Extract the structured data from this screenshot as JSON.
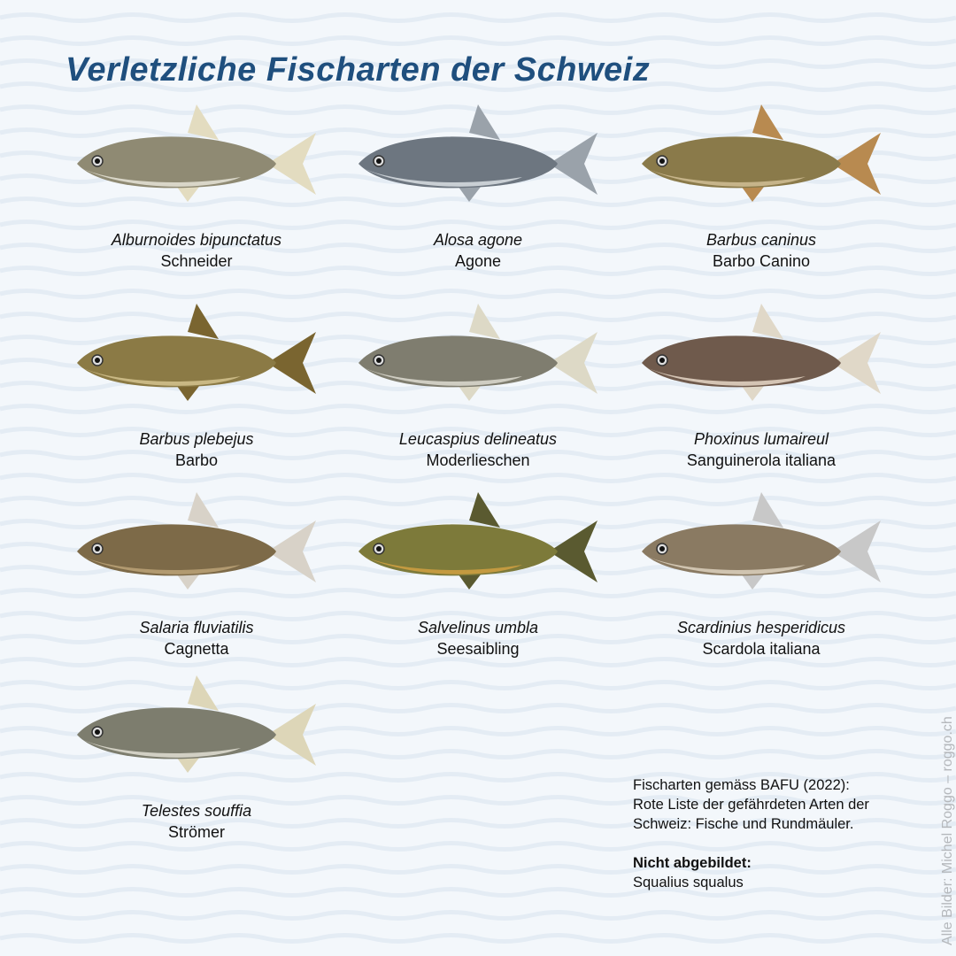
{
  "title": "Verletzliche Fischarten der Schweiz",
  "fish": [
    {
      "latin": "Alburnoides bipunctatus",
      "common": "Schneider",
      "body": "#8f8a73",
      "belly": "#d9d6c8",
      "fin": "#e3dcc0"
    },
    {
      "latin": "Alosa agone",
      "common": "Agone",
      "body": "#6d7680",
      "belly": "#c9cfd4",
      "fin": "#9aa2aa"
    },
    {
      "latin": "Barbus caninus",
      "common": "Barbo Canino",
      "body": "#8a7a4a",
      "belly": "#c6b48a",
      "fin": "#b88a50"
    },
    {
      "latin": "Barbus plebejus",
      "common": "Barbo",
      "body": "#8b7a45",
      "belly": "#c9b884",
      "fin": "#7a6530"
    },
    {
      "latin": "Leucaspius delineatus",
      "common": "Moderlieschen",
      "body": "#7f7d6f",
      "belly": "#cfcdc2",
      "fin": "#ddd9c6"
    },
    {
      "latin": "Phoxinus lumaireul",
      "common": "Sanguinerola italiana",
      "body": "#6f5a4c",
      "belly": "#d4c4b4",
      "fin": "#e0d8c8"
    },
    {
      "latin": "Salaria fluviatilis",
      "common": "Cagnetta",
      "body": "#7d6a48",
      "belly": "#b29a70",
      "fin": "#d8d2c8"
    },
    {
      "latin": "Salvelinus umbla",
      "common": "Seesaibling",
      "body": "#7d7a3a",
      "belly": "#c49a40",
      "fin": "#5a5a30"
    },
    {
      "latin": "Scardinius hesperidicus",
      "common": "Scardola italiana",
      "body": "#8a7a62",
      "belly": "#d0c4b0",
      "fin": "#c8c8c8"
    },
    {
      "latin": "Telestes souffia",
      "common": "Strömer",
      "body": "#7d7d6e",
      "belly": "#d2d0c4",
      "fin": "#ddd6b8"
    }
  ],
  "note": {
    "line1": "Fischarten gemäss BAFU (2022):",
    "line2": "Rote Liste der gefährdeten Arten der",
    "line3": "Schweiz: Fische und Rundmäuler.",
    "heading": "Nicht abgebildet:",
    "species": "Squalius squalus"
  },
  "credit": "Alle Bilder: Michel Roggo – roggo.ch",
  "colors": {
    "title": "#1f4f7e",
    "background": "#f3f7fb"
  }
}
